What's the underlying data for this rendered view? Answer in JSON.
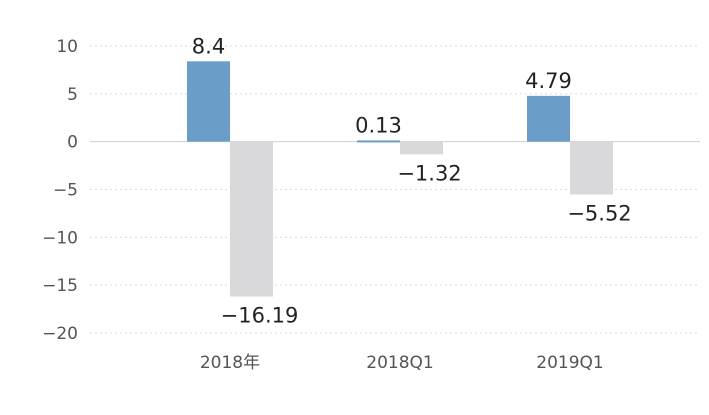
{
  "chart_data": {
    "type": "bar",
    "categories": [
      "2018年",
      "2018Q1",
      "2019Q1"
    ],
    "series": [
      {
        "values": [
          8.4,
          0.13,
          4.79
        ],
        "color": "#6a9ec8"
      },
      {
        "values": [
          -16.19,
          -1.32,
          -5.52
        ],
        "color": "#d9d9db"
      }
    ],
    "data_labels": [
      [
        "8.4",
        "0.13",
        "4.79"
      ],
      [
        "−16.19",
        "−1.32",
        "−5.52"
      ]
    ],
    "y_ticks": [
      10,
      5,
      0,
      -5,
      -10,
      -15,
      -20
    ],
    "y_tick_labels": [
      "10",
      "5",
      "0",
      "−5",
      "−10",
      "−15",
      "−20"
    ],
    "ylim": [
      -20,
      10
    ],
    "grid": true,
    "title": "",
    "xlabel": "",
    "ylabel": ""
  }
}
